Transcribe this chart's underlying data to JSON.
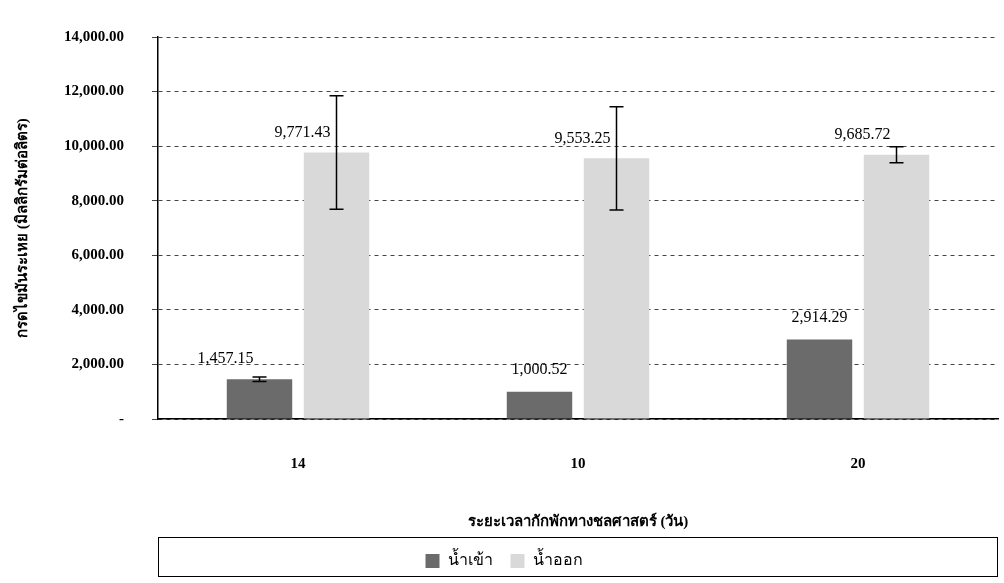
{
  "chart_data": {
    "type": "bar",
    "xlabel": "ระยะเวลากักพักทางชลศาสตร์ (วัน)",
    "ylabel": "กรดไขมันระเหย (มิลลิกรัมต่อลิตร)",
    "categories": [
      "14",
      "10",
      "20"
    ],
    "series": [
      {
        "name": "น้ำเข้า",
        "color": "#6b6b6b",
        "values": [
          1457.15,
          1000.52,
          2914.29
        ],
        "errors": [
          80,
          null,
          null
        ],
        "value_labels": [
          "1,457.15",
          "1,000.52",
          "2,914.29"
        ]
      },
      {
        "name": "น้ำออก",
        "color": "#d9d9d9",
        "values": [
          9771.43,
          9553.25,
          9685.72
        ],
        "errors": [
          2080,
          1890,
          290
        ],
        "value_labels": [
          "9,771.43",
          "9,553.25",
          "9,685.72"
        ]
      }
    ],
    "ylim": [
      0,
      14000
    ],
    "yticks": [
      {
        "value": 0,
        "label": "-"
      },
      {
        "value": 2000,
        "label": "2,000.00"
      },
      {
        "value": 4000,
        "label": "4,000.00"
      },
      {
        "value": 6000,
        "label": "6,000.00"
      },
      {
        "value": 8000,
        "label": "8,000.00"
      },
      {
        "value": 10000,
        "label": "10,000.00"
      },
      {
        "value": 12000,
        "label": "12,000.00"
      },
      {
        "value": 14000,
        "label": "14,000.00"
      }
    ],
    "grid": "y",
    "legend": "bottom"
  }
}
